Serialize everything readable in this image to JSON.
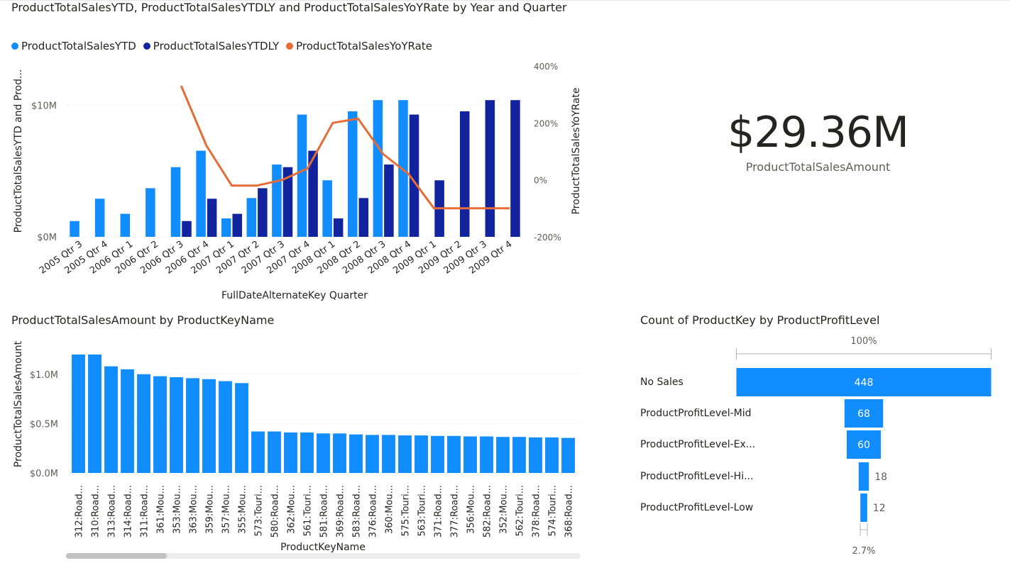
{
  "charts": {
    "combo": {
      "title": "ProductTotalSalesYTD, ProductTotalSalesYTDLY and ProductTotalSalesYoYRate by Year and Quarter",
      "legend": [
        {
          "label": "ProductTotalSalesYTD",
          "color": "#118DFF"
        },
        {
          "label": "ProductTotalSalesYTDLY",
          "color": "#12239E"
        },
        {
          "label": "ProductTotalSalesYoYRate",
          "color": "#E66C37"
        }
      ],
      "y_left_label": "ProductTotalSalesYTD and Prod...",
      "y_right_label": "ProductTotalSalesYoYRate",
      "x_label": "FullDateAlternateKey Quarter"
    },
    "kpi": {
      "value": "$29.36M",
      "label": "ProductTotalSalesAmount"
    },
    "products": {
      "title": "ProductTotalSalesAmount by ProductKeyName",
      "y_label": "ProductTotalSalesAmount",
      "x_label": "ProductKeyName"
    },
    "funnel": {
      "title": "Count of ProductKey by ProductProfitLevel",
      "top_label": "100%",
      "bottom_label": "2.7%"
    }
  },
  "chart_data": [
    {
      "type": "bar+line",
      "title": "ProductTotalSalesYTD, ProductTotalSalesYTDLY and ProductTotalSalesYoYRate by Year and Quarter",
      "categories": [
        "2005 Qtr 3",
        "2005 Qtr 4",
        "2006 Qtr 1",
        "2006 Qtr 2",
        "2006 Qtr 3",
        "2006 Qtr 4",
        "2007 Qtr 1",
        "2007 Qtr 2",
        "2007 Qtr 3",
        "2007 Qtr 4",
        "2008 Qtr 1",
        "2008 Qtr 2",
        "2008 Qtr 3",
        "2008 Qtr 4",
        "2009 Qtr 1",
        "2009 Qtr 2",
        "2009 Qtr 3",
        "2009 Qtr 4"
      ],
      "series": [
        {
          "name": "ProductTotalSalesYTD",
          "axis": "left",
          "kind": "bar",
          "color": "#118DFF",
          "values": [
            1.2,
            2.9,
            1.75,
            3.7,
            5.3,
            6.55,
            1.4,
            2.95,
            5.5,
            9.3,
            4.3,
            9.55,
            10.4,
            10.4,
            null,
            null,
            null,
            null
          ]
        },
        {
          "name": "ProductTotalSalesYTDLY",
          "axis": "left",
          "kind": "bar",
          "color": "#12239E",
          "values": [
            null,
            null,
            null,
            null,
            1.2,
            2.9,
            1.75,
            3.7,
            5.3,
            6.55,
            1.4,
            2.95,
            5.5,
            9.3,
            4.3,
            9.55,
            10.4,
            10.4
          ]
        },
        {
          "name": "ProductTotalSalesYoYRate",
          "axis": "right",
          "kind": "line",
          "color": "#E66C37",
          "values": [
            null,
            null,
            null,
            null,
            330,
            120,
            -20,
            -20,
            0,
            40,
            200,
            215,
            90,
            20,
            -100,
            -100,
            -100,
            -100
          ]
        }
      ],
      "ylim_left": [
        0,
        13
      ],
      "yticks_left": [
        {
          "v": 0,
          "label": "$0M"
        },
        {
          "v": 10,
          "label": "$10M"
        }
      ],
      "ylim_right": [
        -200,
        400
      ],
      "yticks_right": [
        {
          "v": -200,
          "label": "-200%"
        },
        {
          "v": 0,
          "label": "0%"
        },
        {
          "v": 200,
          "label": "200%"
        },
        {
          "v": 400,
          "label": "400%"
        }
      ],
      "xlabel": "FullDateAlternateKey Quarter",
      "ylabel": "ProductTotalSalesYTD and Prod...",
      "ylabel_right": "ProductTotalSalesYoYRate"
    },
    {
      "type": "bar",
      "title": "ProductTotalSalesAmount by ProductKeyName",
      "categories": [
        "312:Road...",
        "310:Road...",
        "313:Road...",
        "314:Road...",
        "311:Road...",
        "361:Mou...",
        "353:Mou...",
        "363:Mou...",
        "359:Mou...",
        "357:Mou...",
        "355:Mou...",
        "573:Touri...",
        "580:Road...",
        "362:Mou...",
        "561:Touri...",
        "581:Road...",
        "369:Road...",
        "583:Road...",
        "376:Road...",
        "360:Mou...",
        "575:Touri...",
        "563:Touri...",
        "371:Road...",
        "377:Road...",
        "356:Mou...",
        "582:Road...",
        "352:Mou...",
        "562:Touri...",
        "378:Road...",
        "574:Touri...",
        "368:Road..."
      ],
      "values": [
        1.2,
        1.2,
        1.08,
        1.05,
        1.0,
        0.98,
        0.97,
        0.96,
        0.95,
        0.93,
        0.91,
        0.42,
        0.42,
        0.41,
        0.41,
        0.4,
        0.4,
        0.39,
        0.385,
        0.385,
        0.38,
        0.38,
        0.375,
        0.375,
        0.37,
        0.37,
        0.365,
        0.365,
        0.36,
        0.36,
        0.355
      ],
      "color": "#118DFF",
      "ylim": [
        0,
        1.3
      ],
      "yticks": [
        {
          "v": 0,
          "label": "$0.0M"
        },
        {
          "v": 0.5,
          "label": "$0.5M"
        },
        {
          "v": 1.0,
          "label": "$1.0M"
        }
      ],
      "xlabel": "ProductKeyName",
      "ylabel": "ProductTotalSalesAmount"
    },
    {
      "type": "funnel",
      "title": "Count of ProductKey by ProductProfitLevel",
      "categories": [
        "No Sales",
        "ProductProfitLevel-Mid",
        "ProductProfitLevel-Ex...",
        "ProductProfitLevel-Hi...",
        "ProductProfitLevel-Low"
      ],
      "values": [
        448,
        68,
        60,
        18,
        12
      ],
      "color": "#118DFF",
      "top_percent": "100%",
      "bottom_percent": "2.7%"
    }
  ]
}
